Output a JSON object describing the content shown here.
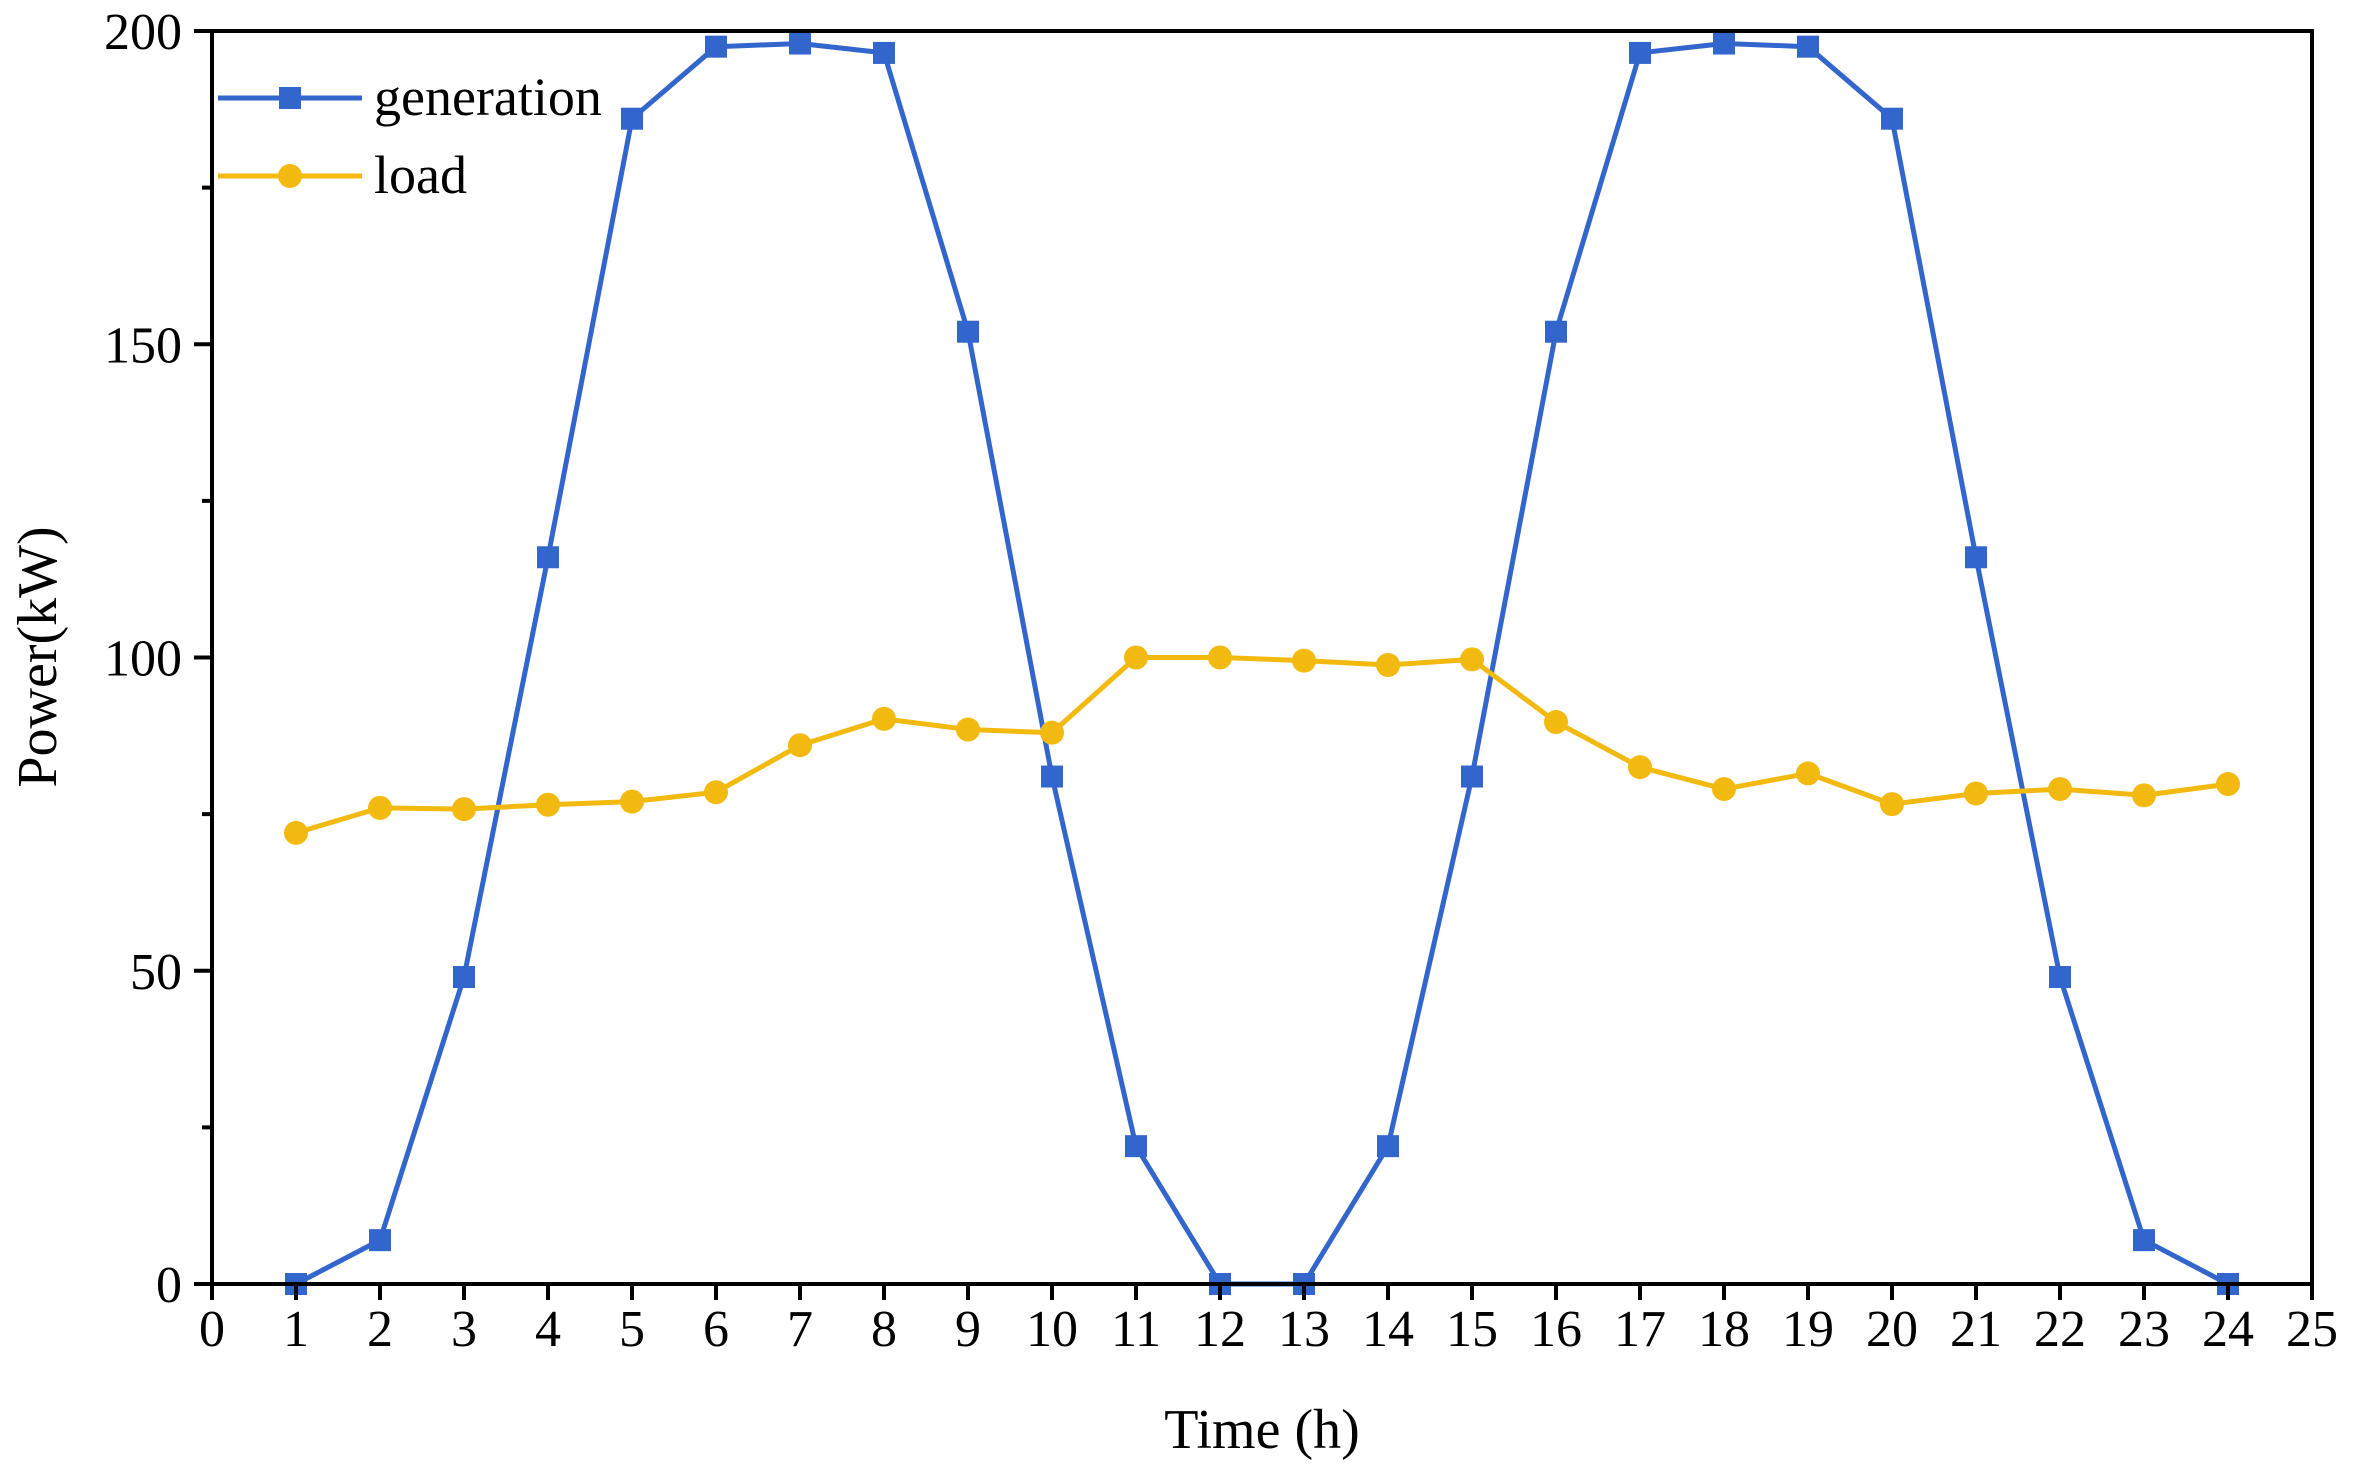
{
  "chart_data": {
    "type": "line",
    "xlabel": "Time (h)",
    "ylabel": "Power(kW)",
    "xlim": [
      0,
      25
    ],
    "ylim": [
      0,
      200
    ],
    "xticks": [
      0,
      1,
      2,
      3,
      4,
      5,
      6,
      7,
      8,
      9,
      10,
      11,
      12,
      13,
      14,
      15,
      16,
      17,
      18,
      19,
      20,
      21,
      22,
      23,
      24,
      25
    ],
    "yticks": [
      0,
      50,
      100,
      150,
      200
    ],
    "y_minor_ticks": [
      25,
      75,
      125,
      175
    ],
    "grid": false,
    "legend_position": "top-left",
    "x": [
      1,
      2,
      3,
      4,
      5,
      6,
      7,
      8,
      9,
      10,
      11,
      12,
      13,
      14,
      15,
      16,
      17,
      18,
      19,
      20,
      21,
      22,
      23,
      24
    ],
    "series": [
      {
        "name": "generation",
        "color": "#3366cc",
        "marker": "square",
        "values": [
          0,
          7,
          49,
          116,
          186,
          197.5,
          198,
          196.5,
          152,
          81,
          22,
          0,
          0,
          22,
          81,
          152,
          196.5,
          198,
          197.5,
          186,
          116,
          49,
          7,
          0
        ]
      },
      {
        "name": "load",
        "color": "#f2b90f",
        "marker": "circle",
        "values": [
          72,
          76,
          75.8,
          76.5,
          77,
          78.5,
          86,
          90.2,
          88.5,
          88,
          100,
          100,
          99.5,
          98.8,
          99.7,
          89.7,
          82.5,
          79,
          81.5,
          76.6,
          78.3,
          79,
          78,
          79.8
        ]
      }
    ]
  }
}
